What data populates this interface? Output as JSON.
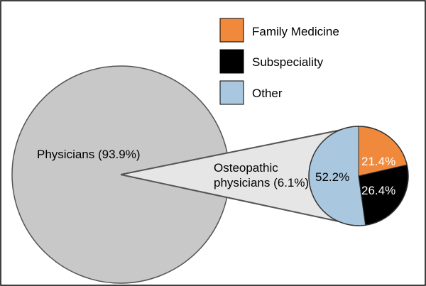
{
  "chart_data": {
    "type": "pie",
    "main_pie": {
      "slices": [
        {
          "label": "Physicians (93.9%)",
          "value": 93.9,
          "color": "#c8c8c8"
        },
        {
          "label_lines": [
            "Osteopathic",
            "physicians (6.1%)"
          ],
          "value": 6.1,
          "color": "#e6e6e6"
        }
      ]
    },
    "breakout_pie": {
      "slices": [
        {
          "name": "Family Medicine",
          "value": 21.4,
          "label": "21.4%",
          "color": "#f0893c",
          "label_color": "#ffffff"
        },
        {
          "name": "Subspeciality",
          "value": 26.4,
          "label": "26.4%",
          "color": "#000000",
          "label_color": "#ffffff"
        },
        {
          "name": "Other",
          "value": 52.2,
          "label": "52.2%",
          "color": "#a9c8e0",
          "label_color": "#000000"
        }
      ]
    },
    "legend": {
      "placement": "top-right",
      "items": [
        {
          "label": "Family Medicine",
          "color": "#f0893c"
        },
        {
          "label": "Subspeciality",
          "color": "#000000"
        },
        {
          "label": "Other",
          "color": "#a9c8e0"
        }
      ]
    }
  }
}
